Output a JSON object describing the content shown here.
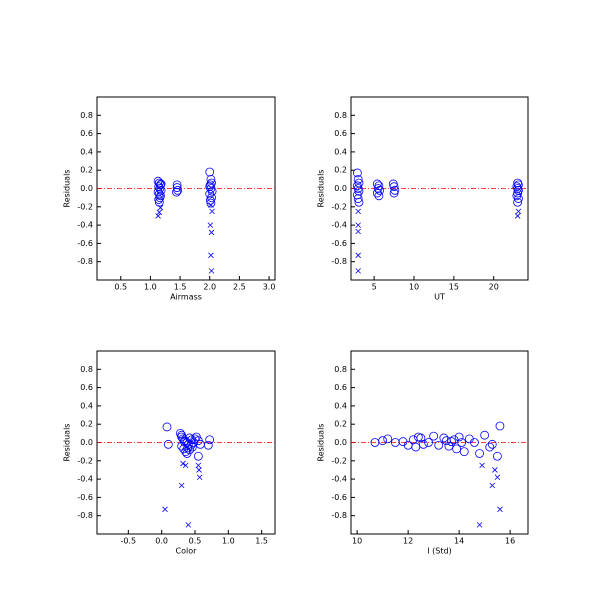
{
  "chart_data": [
    {
      "type": "scatter",
      "xlabel": "Airmass",
      "ylabel": "Residuals",
      "xlim": [
        0.1,
        3.1
      ],
      "ylim": [
        -1,
        1
      ],
      "xticks": [
        0.5,
        {
          "value": 1,
          "label": "1.0"
        },
        1.5,
        {
          "value": 2,
          "label": "2.0"
        },
        2.5,
        {
          "value": 3,
          "label": "3.0"
        }
      ],
      "yticks": [
        -0.8,
        -0.6,
        -0.4,
        -0.2,
        {
          "value": 0,
          "label": "0.0"
        },
        0.2,
        0.4,
        0.6,
        0.8
      ],
      "hline": 0,
      "hline_color": "#ff0000",
      "series": [
        {
          "marker": "circle",
          "color": "#0000ff",
          "x": [
            1.13,
            1.15,
            1.17,
            1.14,
            1.16,
            1.18,
            1.13,
            1.15,
            1.17,
            1.16,
            1.14,
            1.18,
            1.15,
            1.45,
            1.45,
            1.46,
            1.44,
            2.0,
            2.02,
            2.03,
            2.01,
            2.0,
            2.02,
            2.04,
            2.0,
            2.03,
            2.01,
            2.02
          ],
          "y": [
            0.08,
            0.06,
            0.04,
            0.02,
            0.0,
            -0.02,
            -0.04,
            -0.06,
            -0.08,
            -0.1,
            -0.12,
            0.05,
            -0.15,
            0.04,
            0.01,
            -0.02,
            -0.04,
            0.18,
            0.1,
            0.06,
            0.04,
            0.02,
            0.0,
            -0.03,
            -0.06,
            -0.1,
            -0.13,
            -0.16
          ]
        },
        {
          "marker": "x",
          "color": "#0000ff",
          "x": [
            1.13,
            1.15,
            1.17,
            2.03,
            2.02,
            2.03,
            2.01,
            2.04,
            2.02
          ],
          "y": [
            -0.3,
            -0.26,
            -0.21,
            -0.9,
            -0.73,
            -0.48,
            -0.4,
            -0.25,
            -0.18
          ]
        }
      ]
    },
    {
      "type": "scatter",
      "xlabel": "UT",
      "ylabel": "Residuals",
      "xlim": [
        2.1,
        24.3
      ],
      "ylim": [
        -1,
        1
      ],
      "xticks": [
        5,
        10,
        15,
        20
      ],
      "yticks": [
        -0.8,
        -0.6,
        -0.4,
        -0.2,
        {
          "value": 0,
          "label": "0.0"
        },
        0.2,
        0.4,
        0.6,
        0.8
      ],
      "hline": 0,
      "hline_color": "#ff0000",
      "series": [
        {
          "marker": "circle",
          "color": "#0000ff",
          "x": [
            2.9,
            3.0,
            3.1,
            2.9,
            3.0,
            3.1,
            2.9,
            3.0,
            3.1,
            5.4,
            5.6,
            5.5,
            5.7,
            5.4,
            5.6,
            7.4,
            7.5,
            7.6,
            7.5,
            23.0,
            23.1,
            22.9,
            23.0,
            23.1,
            23.0,
            22.9,
            23.1,
            23.0
          ],
          "y": [
            0.17,
            0.1,
            0.06,
            0.03,
            0.0,
            -0.03,
            -0.07,
            -0.11,
            -0.15,
            0.05,
            0.03,
            0.0,
            -0.02,
            -0.05,
            -0.08,
            0.05,
            0.02,
            -0.02,
            -0.05,
            0.06,
            0.04,
            0.02,
            0.0,
            -0.02,
            -0.05,
            -0.08,
            -0.11,
            -0.15
          ]
        },
        {
          "marker": "x",
          "color": "#0000ff",
          "x": [
            3.0,
            3.0,
            3.0,
            3.0,
            3.0,
            23.0,
            23.1
          ],
          "y": [
            -0.9,
            -0.73,
            -0.47,
            -0.4,
            -0.25,
            -0.3,
            -0.25
          ]
        }
      ]
    },
    {
      "type": "scatter",
      "xlabel": "Color",
      "ylabel": "Residuals",
      "xlim": [
        -0.97,
        1.7
      ],
      "ylim": [
        -1,
        1
      ],
      "xticks": [
        -0.5,
        {
          "value": 0,
          "label": "0.0"
        },
        0.5,
        {
          "value": 1,
          "label": "1.0"
        },
        1.5
      ],
      "yticks": [
        -0.8,
        -0.6,
        -0.4,
        -0.2,
        {
          "value": 0,
          "label": "0.0"
        },
        0.2,
        0.4,
        0.6,
        0.8
      ],
      "hline": 0,
      "hline_color": "#ff0000",
      "series": [
        {
          "marker": "circle",
          "color": "#0000ff",
          "x": [
            0.08,
            0.1,
            0.28,
            0.3,
            0.32,
            0.35,
            0.38,
            0.4,
            0.42,
            0.45,
            0.3,
            0.33,
            0.36,
            0.39,
            0.44,
            0.48,
            0.5,
            0.52,
            0.55,
            0.58,
            0.72,
            0.7,
            0.3,
            0.34,
            0.38,
            0.42,
            0.46,
            0.55
          ],
          "y": [
            0.17,
            -0.02,
            0.1,
            0.06,
            0.04,
            0.02,
            0.0,
            -0.02,
            0.05,
            0.03,
            -0.04,
            -0.07,
            -0.1,
            -0.06,
            -0.03,
            0.0,
            0.04,
            0.06,
            0.02,
            -0.02,
            0.03,
            -0.03,
            0.08,
            0.01,
            -0.12,
            -0.08,
            -0.05,
            -0.15
          ]
        },
        {
          "marker": "x",
          "color": "#0000ff",
          "x": [
            0.05,
            0.3,
            0.4,
            0.32,
            0.36,
            0.55,
            0.56,
            0.57
          ],
          "y": [
            -0.73,
            -0.47,
            -0.9,
            -0.23,
            -0.25,
            -0.25,
            -0.3,
            -0.38
          ]
        }
      ]
    },
    {
      "type": "scatter",
      "xlabel": "I (Std)",
      "ylabel": "Residuals",
      "xlim": [
        9.76,
        16.7
      ],
      "ylim": [
        -1,
        1
      ],
      "xticks": [
        10,
        12,
        14,
        16
      ],
      "yticks": [
        -0.8,
        -0.6,
        -0.4,
        -0.2,
        {
          "value": 0,
          "label": "0.0"
        },
        0.2,
        0.4,
        0.6,
        0.8
      ],
      "hline": 0,
      "hline_color": "#ff0000",
      "series": [
        {
          "marker": "circle",
          "color": "#0000ff",
          "x": [
            10.7,
            11.0,
            11.2,
            11.5,
            11.8,
            12.0,
            12.2,
            12.3,
            12.5,
            12.6,
            12.8,
            13.0,
            13.2,
            13.4,
            13.5,
            13.6,
            13.8,
            13.9,
            14.0,
            14.1,
            14.2,
            14.4,
            14.6,
            14.8,
            15.0,
            15.2,
            15.3,
            15.5,
            15.6,
            12.4,
            13.7
          ],
          "y": [
            0.0,
            0.02,
            0.04,
            0.0,
            0.01,
            -0.03,
            0.03,
            -0.05,
            0.05,
            -0.02,
            0.0,
            0.07,
            -0.03,
            0.05,
            0.02,
            -0.04,
            0.03,
            -0.07,
            0.06,
            0.0,
            -0.1,
            0.04,
            0.0,
            -0.12,
            0.08,
            -0.05,
            -0.02,
            -0.15,
            0.18,
            0.06,
            0.01
          ]
        },
        {
          "marker": "x",
          "color": "#0000ff",
          "x": [
            14.8,
            15.3,
            15.5,
            15.6,
            15.4,
            14.9
          ],
          "y": [
            -0.9,
            -0.47,
            -0.38,
            -0.73,
            -0.3,
            -0.25
          ]
        }
      ]
    }
  ]
}
